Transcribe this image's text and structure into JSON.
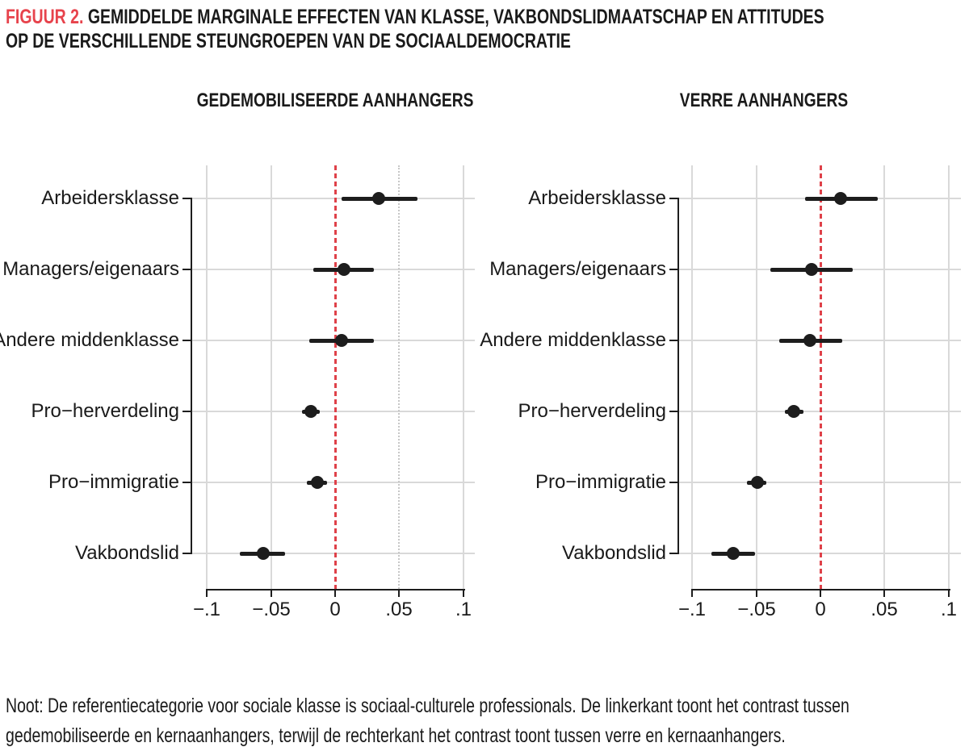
{
  "colors": {
    "accent_red": "#e7434c",
    "ref_line_red": "#df4149",
    "text": "#1a1a1a",
    "line_black": "#1d1d1d",
    "gridline": "#d9d9d9",
    "gridline_dotted": "#c7c7c7"
  },
  "figure": {
    "tag": "FIGUUR 2.",
    "title_line1": "GEMIDDELDE MARGINALE EFFECTEN VAN KLASSE, VAKBONDSLIDMAATSCHAP EN ATTITUDES",
    "title_line2": "OP DE VERSCHILLENDE STEUNGROEPEN VAN DE SOCIAALDEMOCRATIE"
  },
  "note": {
    "lines": [
      "Noot: De referentiecategorie voor sociale klasse is sociaal-culturele professionals. De linkerkant toont het contrast tussen",
      "gedemobiliseerde en kernaanhangers, terwijl de rechterkant het contrast toont tussen verre en kernaanhangers."
    ]
  },
  "chart_data": [
    {
      "type": "scatter",
      "subtype": "dot-and-whisker coefficient plot",
      "title": "GEDEMOBILISEERDE AANHANGERS",
      "categories": [
        "Arbeidersklasse",
        "Managers/eigenaars",
        "Andere middenklasse",
        "Pro−herverdeling",
        "Pro−immigratie",
        "Vakbondslid"
      ],
      "estimates": [
        0.034,
        0.007,
        0.005,
        -0.019,
        -0.014,
        -0.056
      ],
      "ci_low": [
        0.005,
        -0.017,
        -0.02,
        -0.026,
        -0.022,
        -0.074
      ],
      "ci_high": [
        0.064,
        0.03,
        0.03,
        -0.012,
        -0.006,
        -0.039
      ],
      "xticks": {
        "values": [
          -0.1,
          -0.05,
          0,
          0.05,
          0.1
        ],
        "labels": [
          "−.1",
          "−.05",
          "0",
          ".05",
          ".1"
        ]
      },
      "xlim": [
        -0.112,
        0.112
      ],
      "ref_line_x": 0,
      "dotted_grid_x": 0.05,
      "grid": true,
      "legend": "none"
    },
    {
      "type": "scatter",
      "subtype": "dot-and-whisker coefficient plot",
      "title": "VERRE AANHANGERS",
      "categories": [
        "Arbeidersklasse",
        "Managers/eigenaars",
        "Andere middenklasse",
        "Pro−herverdeling",
        "Pro−immigratie",
        "Vakbondslid"
      ],
      "estimates": [
        0.016,
        -0.007,
        -0.008,
        -0.021,
        -0.049,
        -0.068
      ],
      "ci_low": [
        -0.012,
        -0.039,
        -0.032,
        -0.028,
        -0.057,
        -0.085
      ],
      "ci_high": [
        0.045,
        0.025,
        0.017,
        -0.013,
        -0.042,
        -0.051
      ],
      "xticks": {
        "values": [
          -0.1,
          -0.05,
          0,
          0.05,
          0.1
        ],
        "labels": [
          "−.1",
          "−.05",
          "0",
          ".05",
          ".1"
        ]
      },
      "xlim": [
        -0.112,
        0.112
      ],
      "ref_line_x": 0,
      "dotted_grid_x": null,
      "grid": true,
      "legend": "none"
    }
  ]
}
